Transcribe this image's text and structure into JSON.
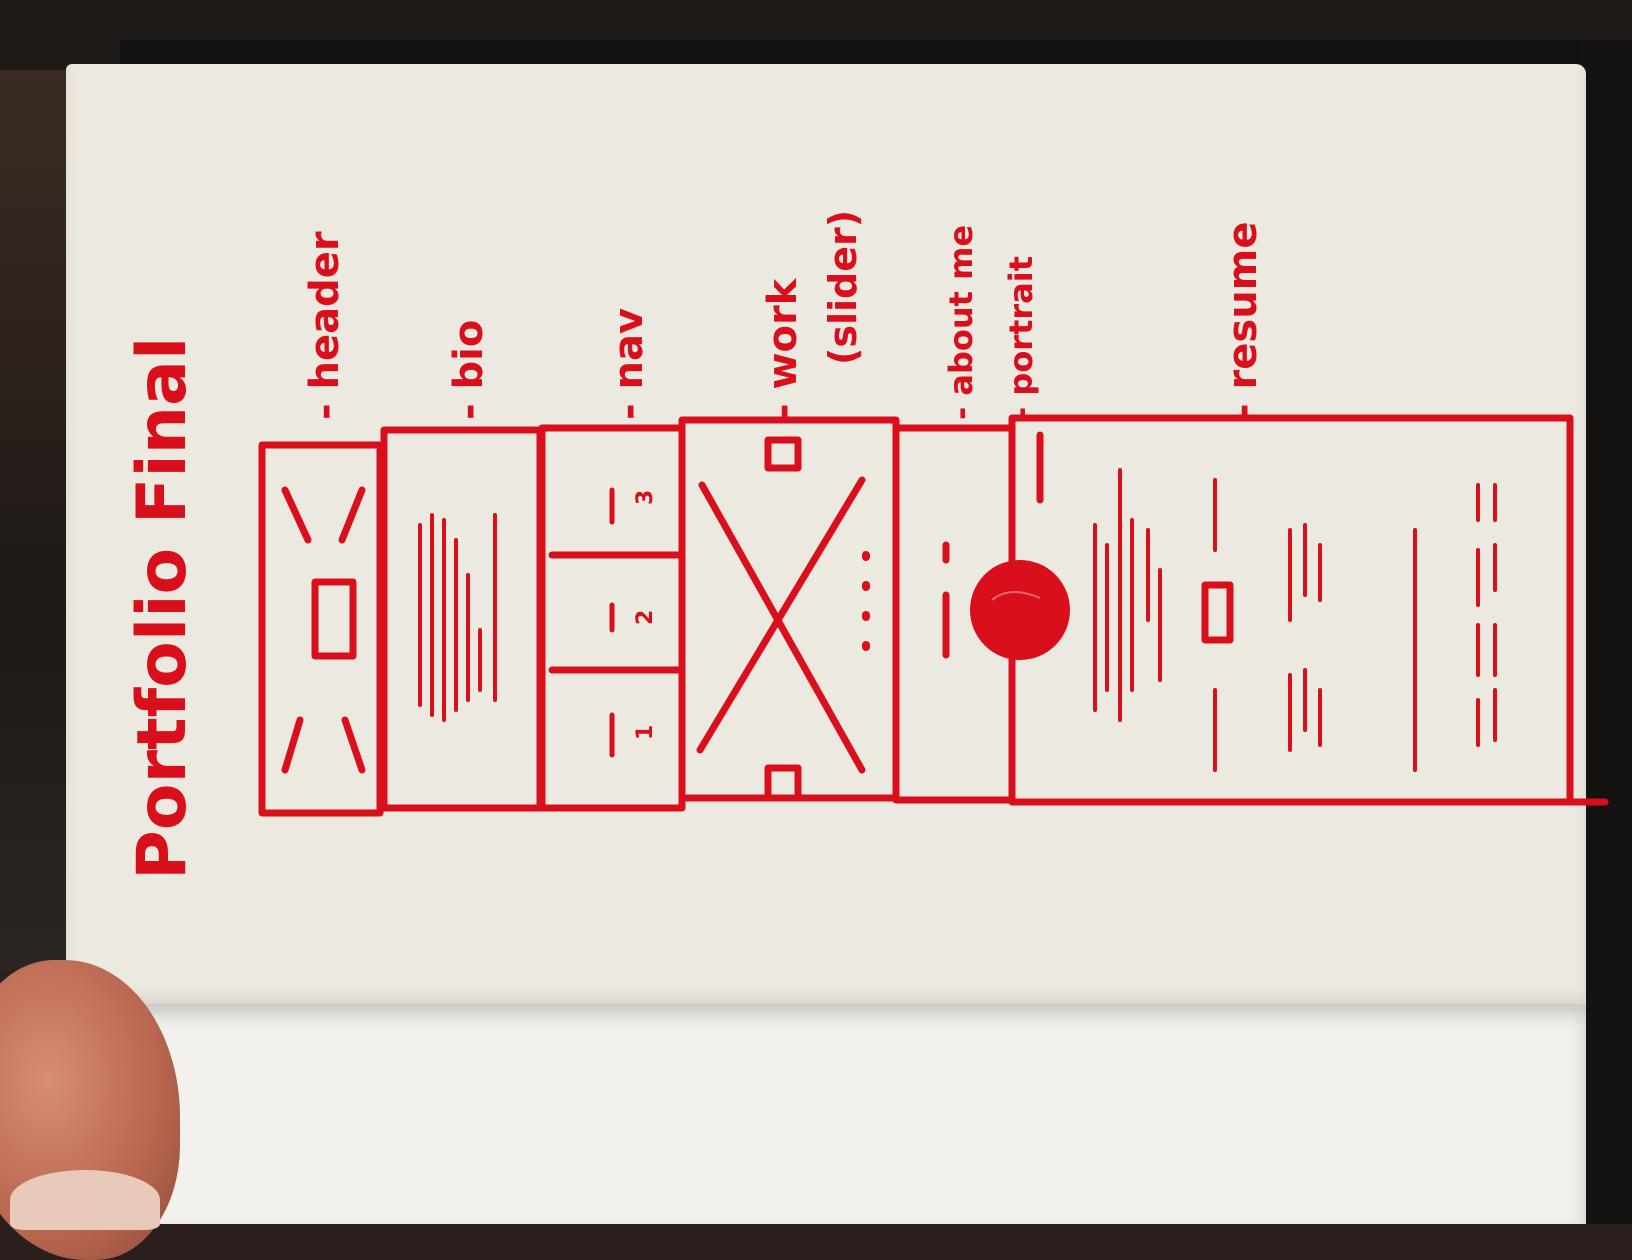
{
  "title": "Portfolio Final",
  "labels": {
    "header": "- header",
    "bio": "- bio",
    "nav": "- nav",
    "work": "- work",
    "work_sub": "(slider)",
    "about": "- about me",
    "portrait": "- portrait",
    "resume": "- resume"
  },
  "nav_items": [
    "1",
    "2",
    "3"
  ],
  "colors": {
    "ink": "#d90f1c",
    "paper": "#ece9e0"
  }
}
